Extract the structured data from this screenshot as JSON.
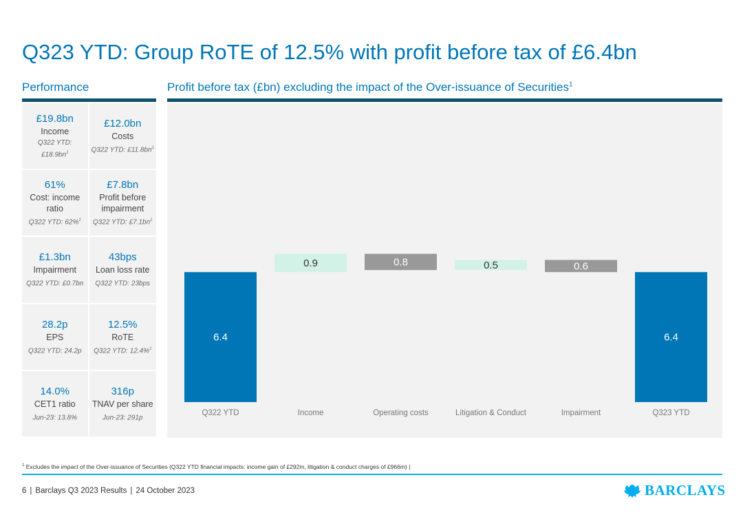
{
  "title": "Q323 YTD: Group RoTE of 12.5% with profit before tax of £6.4bn",
  "performance_label": "Performance",
  "chart_label": "Profit before tax (£bn) excluding the impact of the Over-issuance of Securities",
  "chart_label_sup": "1",
  "kpis": [
    {
      "value": "£19.8bn",
      "label": "Income",
      "compare": "Q322 YTD: £18.9bn",
      "sup": "1"
    },
    {
      "value": "£12.0bn",
      "label": "Costs",
      "compare": "Q322 YTD: £11.8bn",
      "sup": "1"
    },
    {
      "value": "61%",
      "label": "Cost: income ratio",
      "compare": "Q322 YTD: 62%",
      "sup": "1"
    },
    {
      "value": "£7.8bn",
      "label": "Profit before impairment",
      "compare": "Q322 YTD: £7.1bn",
      "sup": "1"
    },
    {
      "value": "£1.3bn",
      "label": "Impairment",
      "compare": "Q322 YTD: £0.7bn",
      "sup": ""
    },
    {
      "value": "43bps",
      "label": "Loan loss rate",
      "compare": "Q322 YTD: 23bps",
      "sup": ""
    },
    {
      "value": "28.2p",
      "label": "EPS",
      "compare": "Q322 YTD: 24.2p",
      "sup": ""
    },
    {
      "value": "12.5%",
      "label": "RoTE",
      "compare": "Q322 YTD: 12.4%",
      "sup": "1"
    },
    {
      "value": "14.0%",
      "label": "CET1 ratio",
      "compare": "Jun-23: 13.8%",
      "sup": ""
    },
    {
      "value": "316p",
      "label": "TNAV per share",
      "compare": "Jun-23: 291p",
      "sup": ""
    }
  ],
  "chart_data": {
    "type": "waterfall",
    "title": "Profit before tax (£bn) excluding the impact of the Over-issuance of Securities",
    "categories": [
      "Q322 YTD",
      "Income",
      "Operating costs",
      "Litigation & Conduct",
      "Impairment",
      "Q323 YTD"
    ],
    "values": [
      6.4,
      0.9,
      -0.8,
      0.5,
      -0.6,
      6.4
    ],
    "labels": [
      "6.4",
      "0.9",
      "0.8",
      "0.5",
      "0.6",
      "6.4"
    ],
    "kinds": [
      "total",
      "increase",
      "decrease",
      "increase",
      "decrease",
      "total"
    ],
    "colors": {
      "total": "#0076b6",
      "increase": "#d2f2e8",
      "decrease": "#999999"
    },
    "label_colors": {
      "total": "#ffffff",
      "increase": "#333333",
      "decrease": "#ffffff"
    },
    "ylim": [
      0,
      7.6
    ]
  },
  "footnote": "Excludes the impact of the Over-issuance of Securities (Q322 YTD financial impacts: income gain of £292m, litigation & conduct charges of £966m)",
  "footnote_sup": "1",
  "footer": {
    "page": "6",
    "doc": "Barclays Q3 2023 Results",
    "date": "24 October 2023"
  },
  "logo_text": "BARCLAYS",
  "colors": {
    "brand_blue": "#0076b6",
    "dark_rule": "#0d4f6e",
    "light_blue": "#00aeef",
    "panel": "#f2f2f2"
  }
}
